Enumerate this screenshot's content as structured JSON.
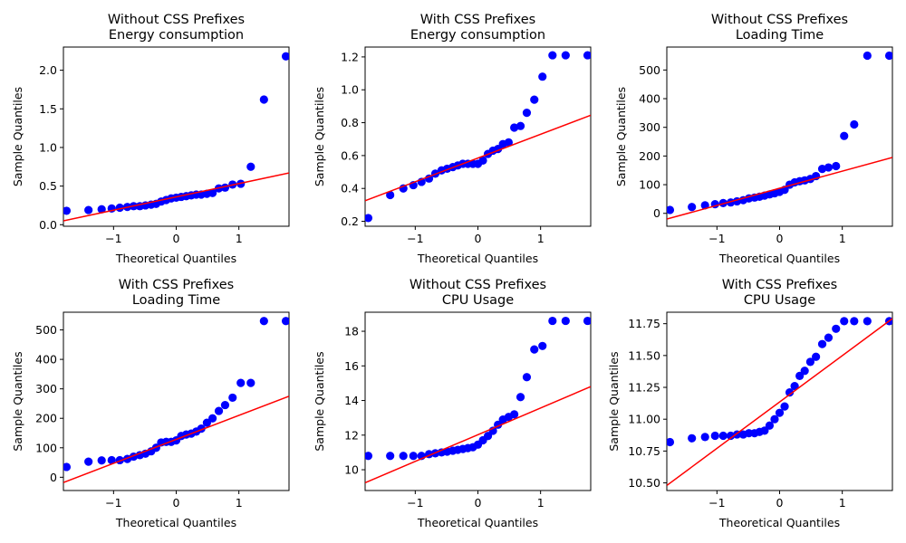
{
  "chart_data": [
    {
      "type": "scatter",
      "title": [
        "Without CSS Prefixes",
        "Energy consumption"
      ],
      "xlabel": "Theoretical Quantiles",
      "ylabel": "Sample Quantiles",
      "xlim": [
        -1.8,
        1.8
      ],
      "ylim": [
        -0.02,
        2.3
      ],
      "xticks": [
        -1,
        0,
        1
      ],
      "xtick_labels": [
        "−1",
        "0",
        "1"
      ],
      "yticks": [
        0.0,
        0.5,
        1.0,
        1.5,
        2.0
      ],
      "ytick_labels": [
        "0.0",
        "0.5",
        "1.0",
        "1.5",
        "2.0"
      ],
      "marker_color": "#0000ff",
      "line_color": "#ff0000",
      "fit_line": {
        "x": [
          -1.8,
          1.8
        ],
        "y": [
          0.05,
          0.67
        ]
      },
      "x": [
        -1.75,
        -1.4,
        -1.19,
        -1.03,
        -0.9,
        -0.78,
        -0.68,
        -0.58,
        -0.49,
        -0.4,
        -0.32,
        -0.24,
        -0.16,
        -0.08,
        0.0,
        0.08,
        0.16,
        0.24,
        0.32,
        0.4,
        0.49,
        0.58,
        0.68,
        0.78,
        0.9,
        1.03,
        1.19,
        1.4,
        1.75
      ],
      "y": [
        0.18,
        0.19,
        0.2,
        0.21,
        0.22,
        0.23,
        0.24,
        0.24,
        0.25,
        0.26,
        0.27,
        0.3,
        0.32,
        0.34,
        0.35,
        0.36,
        0.37,
        0.38,
        0.39,
        0.39,
        0.4,
        0.41,
        0.47,
        0.48,
        0.52,
        0.53,
        0.75,
        1.62,
        2.18
      ]
    },
    {
      "type": "scatter",
      "title": [
        "With CSS Prefixes",
        "Energy consumption"
      ],
      "xlabel": "Theoretical Quantiles",
      "ylabel": "Sample Quantiles",
      "xlim": [
        -1.8,
        1.8
      ],
      "ylim": [
        0.17,
        1.26
      ],
      "xticks": [
        -1,
        0,
        1
      ],
      "xtick_labels": [
        "−1",
        "0",
        "1"
      ],
      "yticks": [
        0.2,
        0.4,
        0.6,
        0.8,
        1.0,
        1.2
      ],
      "ytick_labels": [
        "0.2",
        "0.4",
        "0.6",
        "0.8",
        "1.0",
        "1.2"
      ],
      "marker_color": "#0000ff",
      "line_color": "#ff0000",
      "fit_line": {
        "x": [
          -1.8,
          1.8
        ],
        "y": [
          0.325,
          0.845
        ]
      },
      "x": [
        -1.75,
        -1.4,
        -1.19,
        -1.03,
        -0.9,
        -0.78,
        -0.68,
        -0.58,
        -0.49,
        -0.4,
        -0.32,
        -0.24,
        -0.16,
        -0.08,
        0.0,
        0.08,
        0.16,
        0.24,
        0.32,
        0.4,
        0.49,
        0.58,
        0.68,
        0.78,
        0.9,
        1.03,
        1.19,
        1.4,
        1.75
      ],
      "y": [
        0.22,
        0.36,
        0.4,
        0.42,
        0.44,
        0.46,
        0.49,
        0.51,
        0.52,
        0.53,
        0.54,
        0.55,
        0.55,
        0.55,
        0.55,
        0.57,
        0.61,
        0.63,
        0.64,
        0.67,
        0.68,
        0.77,
        0.78,
        0.86,
        0.94,
        1.08,
        1.21,
        1.21,
        1.21
      ]
    },
    {
      "type": "scatter",
      "title": [
        "Without CSS Prefixes",
        "Loading Time"
      ],
      "xlabel": "Theoretical Quantiles",
      "ylabel": "Sample Quantiles",
      "xlim": [
        -1.8,
        1.8
      ],
      "ylim": [
        -45,
        580
      ],
      "xticks": [
        -1,
        0,
        1
      ],
      "xtick_labels": [
        "−1",
        "0",
        "1"
      ],
      "yticks": [
        0,
        100,
        200,
        300,
        400,
        500
      ],
      "ytick_labels": [
        "0",
        "100",
        "200",
        "300",
        "400",
        "500"
      ],
      "marker_color": "#0000ff",
      "line_color": "#ff0000",
      "fit_line": {
        "x": [
          -1.8,
          1.8
        ],
        "y": [
          -20,
          195
        ]
      },
      "x": [
        -1.75,
        -1.4,
        -1.19,
        -1.03,
        -0.9,
        -0.78,
        -0.68,
        -0.58,
        -0.49,
        -0.4,
        -0.32,
        -0.24,
        -0.16,
        -0.08,
        0.0,
        0.08,
        0.16,
        0.24,
        0.32,
        0.4,
        0.49,
        0.58,
        0.68,
        0.78,
        0.9,
        1.03,
        1.19,
        1.4,
        1.75
      ],
      "y": [
        12,
        22,
        28,
        32,
        36,
        38,
        42,
        46,
        52,
        55,
        58,
        62,
        66,
        70,
        75,
        82,
        100,
        108,
        112,
        115,
        120,
        130,
        155,
        160,
        165,
        270,
        310,
        550,
        550
      ]
    },
    {
      "type": "scatter",
      "title": [
        "With CSS Prefixes",
        "Loading Time"
      ],
      "xlabel": "Theoretical Quantiles",
      "ylabel": "Sample Quantiles",
      "xlim": [
        -1.8,
        1.8
      ],
      "ylim": [
        -45,
        560
      ],
      "xticks": [
        -1,
        0,
        1
      ],
      "xtick_labels": [
        "−1",
        "0",
        "1"
      ],
      "yticks": [
        0,
        100,
        200,
        300,
        400,
        500
      ],
      "ytick_labels": [
        "0",
        "100",
        "200",
        "300",
        "400",
        "500"
      ],
      "marker_color": "#0000ff",
      "line_color": "#ff0000",
      "fit_line": {
        "x": [
          -1.8,
          1.8
        ],
        "y": [
          -18,
          275
        ]
      },
      "x": [
        -1.75,
        -1.4,
        -1.19,
        -1.03,
        -0.9,
        -0.78,
        -0.68,
        -0.58,
        -0.49,
        -0.4,
        -0.32,
        -0.24,
        -0.16,
        -0.08,
        0.0,
        0.08,
        0.16,
        0.24,
        0.32,
        0.4,
        0.49,
        0.58,
        0.68,
        0.78,
        0.9,
        1.03,
        1.19,
        1.4,
        1.75
      ],
      "y": [
        35,
        53,
        57,
        58,
        58,
        62,
        70,
        75,
        80,
        88,
        100,
        118,
        120,
        120,
        125,
        140,
        145,
        148,
        155,
        165,
        185,
        200,
        225,
        245,
        270,
        320,
        320,
        530,
        530
      ]
    },
    {
      "type": "scatter",
      "title": [
        "Without CSS Prefixes",
        "CPU Usage"
      ],
      "xlabel": "Theoretical Quantiles",
      "ylabel": "Sample Quantiles",
      "xlim": [
        -1.8,
        1.8
      ],
      "ylim": [
        8.8,
        19.1
      ],
      "xticks": [
        -1,
        0,
        1
      ],
      "xtick_labels": [
        "−1",
        "0",
        "1"
      ],
      "yticks": [
        10,
        12,
        14,
        16,
        18
      ],
      "ytick_labels": [
        "10",
        "12",
        "14",
        "16",
        "18"
      ],
      "marker_color": "#0000ff",
      "line_color": "#ff0000",
      "fit_line": {
        "x": [
          -1.8,
          1.8
        ],
        "y": [
          9.25,
          14.8
        ]
      },
      "x": [
        -1.75,
        -1.4,
        -1.19,
        -1.03,
        -0.9,
        -0.78,
        -0.68,
        -0.58,
        -0.49,
        -0.4,
        -0.32,
        -0.24,
        -0.16,
        -0.08,
        0.0,
        0.08,
        0.16,
        0.24,
        0.32,
        0.4,
        0.49,
        0.58,
        0.68,
        0.78,
        0.9,
        1.03,
        1.19,
        1.4,
        1.75
      ],
      "y": [
        10.8,
        10.8,
        10.8,
        10.8,
        10.8,
        10.9,
        10.95,
        11.0,
        11.05,
        11.1,
        11.15,
        11.2,
        11.25,
        11.3,
        11.45,
        11.7,
        11.95,
        12.25,
        12.6,
        12.9,
        13.05,
        13.2,
        14.2,
        15.35,
        16.95,
        17.15,
        18.6,
        18.6,
        18.6
      ]
    },
    {
      "type": "scatter",
      "title": [
        "With CSS Prefixes",
        "CPU Usage"
      ],
      "xlabel": "Theoretical Quantiles",
      "ylabel": "Sample Quantiles",
      "xlim": [
        -1.8,
        1.8
      ],
      "ylim": [
        10.44,
        11.84
      ],
      "xticks": [
        -1,
        0,
        1
      ],
      "xtick_labels": [
        "−1",
        "0",
        "1"
      ],
      "yticks": [
        10.5,
        10.75,
        11.0,
        11.25,
        11.5,
        11.75
      ],
      "ytick_labels": [
        "10.50",
        "10.75",
        "11.00",
        "11.25",
        "11.50",
        "11.75"
      ],
      "marker_color": "#0000ff",
      "line_color": "#ff0000",
      "fit_line": {
        "x": [
          -1.8,
          1.8
        ],
        "y": [
          10.48,
          11.79
        ]
      },
      "x": [
        -1.75,
        -1.4,
        -1.19,
        -1.03,
        -0.9,
        -0.78,
        -0.68,
        -0.58,
        -0.49,
        -0.4,
        -0.32,
        -0.24,
        -0.16,
        -0.08,
        0.0,
        0.08,
        0.16,
        0.24,
        0.32,
        0.4,
        0.49,
        0.58,
        0.68,
        0.78,
        0.9,
        1.03,
        1.19,
        1.4,
        1.75
      ],
      "y": [
        10.82,
        10.85,
        10.86,
        10.87,
        10.87,
        10.87,
        10.88,
        10.88,
        10.89,
        10.89,
        10.9,
        10.91,
        10.95,
        11.0,
        11.05,
        11.1,
        11.21,
        11.26,
        11.34,
        11.38,
        11.45,
        11.49,
        11.59,
        11.64,
        11.71,
        11.77,
        11.77,
        11.77,
        11.77
      ]
    }
  ]
}
